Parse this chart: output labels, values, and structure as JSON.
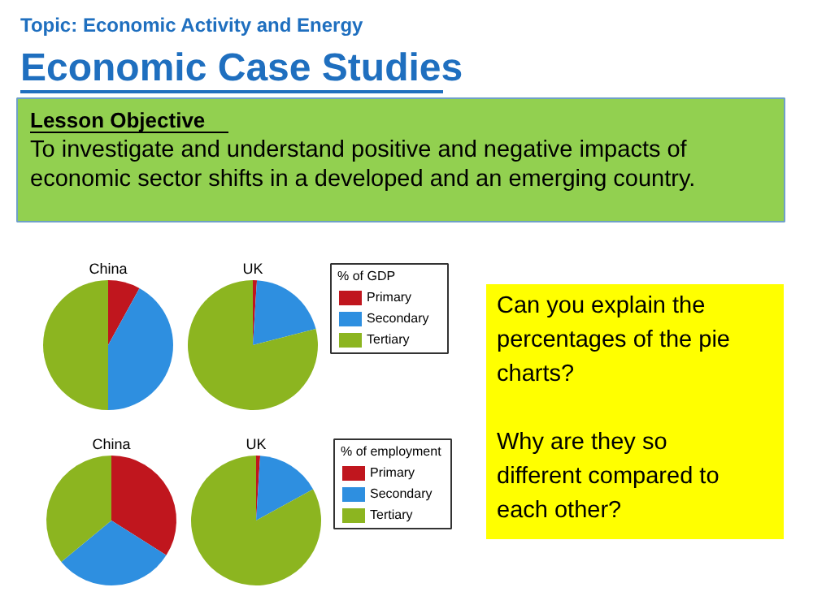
{
  "chart_data": [
    {
      "type": "other",
      "subtitle": "Topic: Economic Activity and Energy",
      "title": "Economic Case Studies",
      "annotations": [
        "Lesson Objective",
        "To investigate and understand positive and negative impacts of economic sector shifts in a developed and an emerging country.",
        "Can you explain the percentages of the pie charts?",
        "Why are they so different compared to each other?"
      ]
    },
    {
      "type": "pie",
      "title": "China",
      "categories": [
        null,
        null,
        null
      ],
      "values": [
        8,
        42,
        50
      ],
      "colors": [
        "#c0161e",
        "#2e8fe0",
        "#8cb520"
      ]
    },
    {
      "type": "pie",
      "title": "UK",
      "categories": [
        "Primary",
        "Secondary",
        "Tertiary"
      ],
      "values": [
        1,
        20,
        79
      ],
      "colors": [
        "#c0161e",
        "#2e8fe0",
        "#8cb520"
      ],
      "legend": "right",
      "legend_title": "% of GDP"
    },
    {
      "type": "pie",
      "title": "China",
      "categories": [
        null,
        null,
        null
      ],
      "values": [
        34,
        30,
        36
      ],
      "colors": [
        "#c0161e",
        "#2e8fe0",
        "#8cb520"
      ]
    },
    {
      "type": "pie",
      "title": "UK",
      "categories": [
        "Primary",
        "Secondary",
        "Tertiary"
      ],
      "values": [
        1,
        16,
        83
      ],
      "colors": [
        "#c0161e",
        "#2e8fe0",
        "#8cb520"
      ],
      "legend": "right",
      "legend_title": "% of employment"
    }
  ]
}
